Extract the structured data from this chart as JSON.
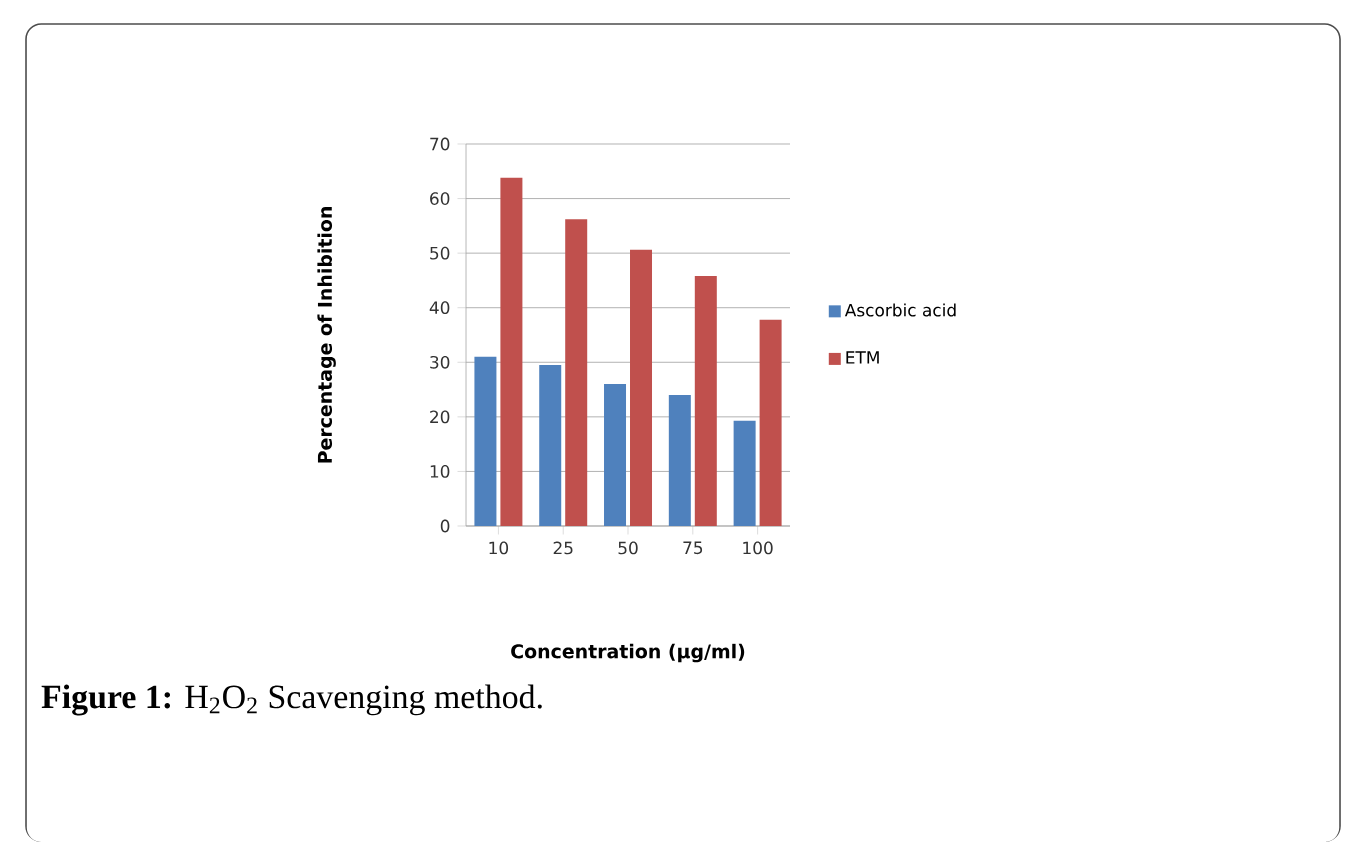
{
  "chart_data": {
    "type": "bar",
    "categories": [
      "10",
      "25",
      "50",
      "75",
      "100"
    ],
    "xlabel": "Concentration (µg/ml)",
    "ylabel": "Percentage of Inhibition",
    "series": [
      {
        "name": "Ascorbic acid",
        "color": "#4f81bd",
        "values": [
          31,
          29.5,
          26,
          24,
          19.3
        ]
      },
      {
        "name": "ETM",
        "color": "#c0504d",
        "values": [
          63.8,
          56.2,
          50.6,
          45.8,
          37.8
        ]
      }
    ],
    "ylim": [
      0,
      70
    ],
    "yticks": [
      0,
      10,
      20,
      30,
      40,
      50,
      60,
      70
    ],
    "grid": "y",
    "legend": "right",
    "annotations": [
      "**Figure 1:** H$_{2}$O$_{2}$ Scavenging method."
    ]
  }
}
